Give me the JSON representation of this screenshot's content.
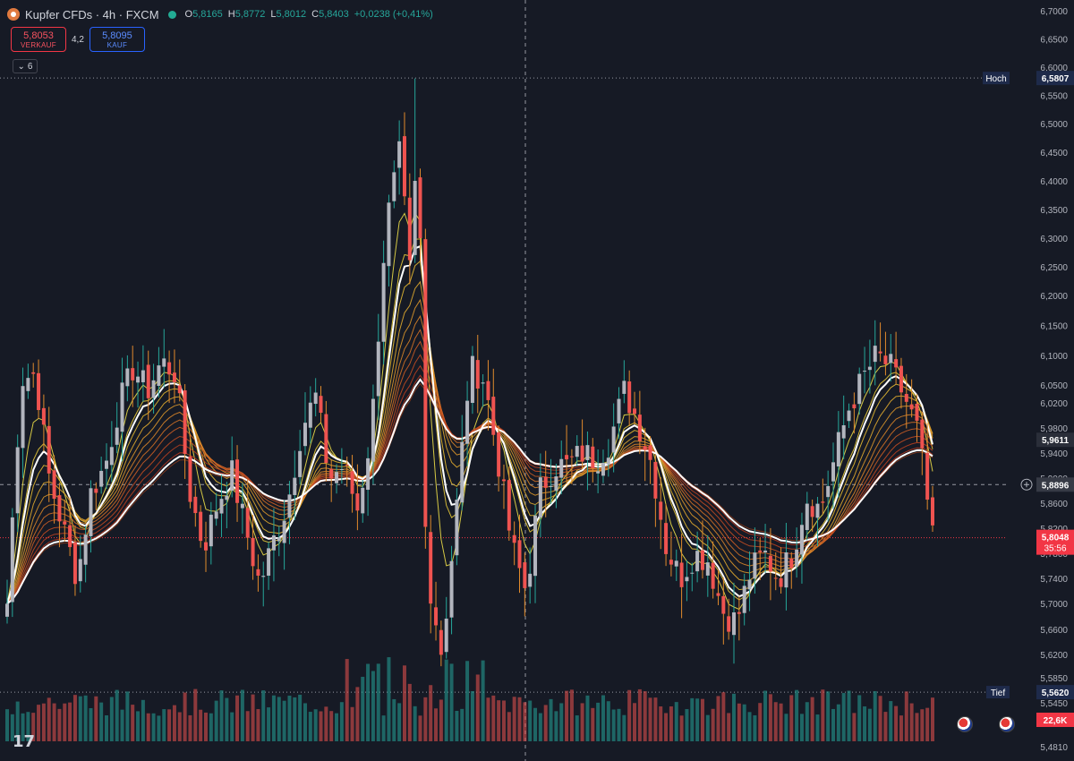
{
  "header": {
    "symbol_title": "Kupfer CFDs · 4h · FXCM",
    "ohlc": [
      {
        "k": "O",
        "v": "5,8165"
      },
      {
        "k": "H",
        "v": "5,8772"
      },
      {
        "k": "L",
        "v": "5,8012"
      },
      {
        "k": "C",
        "v": "5,8403"
      }
    ],
    "change": "+0,0238 (+0,41%)"
  },
  "trade": {
    "sell_price": "5,8053",
    "sell_label": "VERKAUF",
    "spread": "4,2",
    "buy_price": "5,8095",
    "buy_label": "KAUF"
  },
  "indicator_toggle": "6",
  "colors": {
    "background": "#161a25",
    "up": "#26a69a",
    "down": "#ef5350",
    "white_ma": "#ffffff",
    "accent_blue": "#2962ff"
  },
  "chart_data": {
    "type": "candlestick",
    "instrument": "Kupfer CFDs",
    "timeframe": "4h",
    "price_axis": {
      "min": 5.481,
      "max": 6.7,
      "ticks": [
        "6,7000",
        "6,6500",
        "6,6000",
        "6,5500",
        "6,5000",
        "6,4500",
        "6,4000",
        "6,3500",
        "6,3000",
        "6,2500",
        "6,2000",
        "6,1500",
        "6,1000",
        "6,0500",
        "6,0200",
        "5,9800",
        "5,9400",
        "5,9000",
        "5,8600",
        "5,8200",
        "5,7800",
        "5,7400",
        "5,7000",
        "5,6600",
        "5,6200",
        "5,5850",
        "5,5450",
        "5,4810"
      ]
    },
    "markers": {
      "high": {
        "label": "Hoch",
        "value": "6,5807",
        "price": 6.5807
      },
      "low": {
        "label": "Tief",
        "value": "5,5620",
        "price": 5.562
      },
      "ma_level": {
        "value": "5,9611",
        "price": 5.9611
      },
      "crosshair": {
        "value": "5,8896",
        "price": 5.8896
      },
      "last": {
        "value": "5,8048",
        "countdown": "35:56",
        "price": 5.8048
      },
      "volume": {
        "value": "22,6K"
      }
    },
    "close_path": [
      5.7,
      6.06,
      6.07,
      5.9,
      5.82,
      5.74,
      5.88,
      5.92,
      6.02,
      6.08,
      6.04,
      6.09,
      6.07,
      5.88,
      5.79,
      5.86,
      5.91,
      5.82,
      5.73,
      5.8,
      5.86,
      5.98,
      6.03,
      5.9,
      5.92,
      5.85,
      5.98,
      6.32,
      6.45,
      6.16,
      5.75,
      5.62,
      5.84,
      6.08,
      6.06,
      5.93,
      5.79,
      5.72,
      5.88,
      5.92,
      5.92,
      5.94,
      5.93,
      5.96,
      6.04,
      5.99,
      5.92,
      5.79,
      5.74,
      5.78,
      5.77,
      5.69,
      5.67,
      5.75,
      5.78,
      5.74,
      5.78,
      5.87,
      5.85,
      5.93,
      6.01,
      6.06,
      6.1,
      6.08,
      6.03,
      5.97,
      5.8
    ],
    "volume_range": [
      0.3,
      1.0
    ]
  }
}
